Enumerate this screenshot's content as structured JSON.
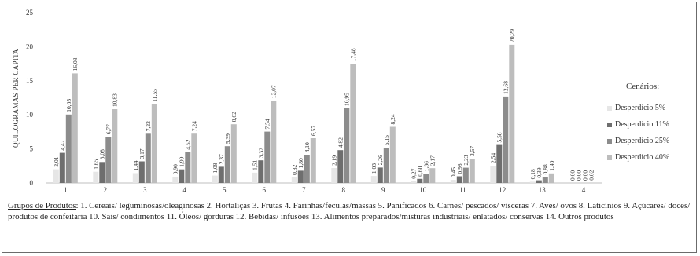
{
  "chart_data": {
    "type": "bar",
    "ylabel": "QUILOGRAMAS PER CAPITA",
    "ylim": [
      0,
      25
    ],
    "yticks": [
      "0",
      "5",
      "10",
      "15",
      "20",
      "25"
    ],
    "categories": [
      "1",
      "2",
      "3",
      "4",
      "5",
      "6",
      "7",
      "8",
      "9",
      "10",
      "11",
      "12",
      "13",
      "14"
    ],
    "grid": false,
    "legend_position": "right",
    "series": [
      {
        "name": "Desperdício 5%",
        "color": "#e6e6e6",
        "values": [
          2.01,
          1.65,
          1.44,
          0.9,
          1.08,
          1.51,
          0.82,
          2.19,
          1.03,
          0.27,
          0.45,
          2.54,
          0.18,
          0.0
        ],
        "labels": [
          "2,01",
          "1,65",
          "1,44",
          "0,90",
          "1,08",
          "1,51",
          "0,82",
          "2,19",
          "1,03",
          "0,27",
          "0,45",
          "2,54",
          "0,18",
          "0,00"
        ]
      },
      {
        "name": "Desperdício 11%",
        "color": "#6e6e6e",
        "values": [
          4.42,
          3.08,
          3.17,
          1.99,
          2.37,
          3.32,
          1.8,
          4.82,
          2.26,
          0.6,
          0.98,
          5.58,
          0.39,
          0.0
        ],
        "labels": [
          "4,42",
          "3,08",
          "3,17",
          "1,99",
          "2,37",
          "3,32",
          "1,80",
          "4,82",
          "2,26",
          "0,60",
          "0,98",
          "5,58",
          "0,39",
          "0,00"
        ]
      },
      {
        "name": "Desperdício 25%",
        "color": "#8c8c8c",
        "values": [
          10.05,
          6.77,
          7.22,
          4.52,
          5.39,
          7.54,
          4.1,
          10.95,
          5.15,
          1.36,
          2.23,
          12.68,
          0.88,
          0.0
        ],
        "labels": [
          "10,05",
          "6,77",
          "7,22",
          "4,52",
          "5,39",
          "7,54",
          "4,10",
          "10,95",
          "5,15",
          "1,36",
          "2,23",
          "12,68",
          "0,88",
          "0,00"
        ]
      },
      {
        "name": "Desperdício 40%",
        "color": "#bdbdbd",
        "values": [
          16.08,
          10.83,
          11.55,
          7.24,
          8.62,
          12.07,
          6.57,
          17.48,
          8.24,
          2.17,
          3.57,
          20.29,
          1.4,
          0.02
        ],
        "labels": [
          "16,08",
          "10,83",
          "11,55",
          "7,24",
          "8,62",
          "12,07",
          "6,57",
          "17,48",
          "8,24",
          "2,17",
          "3,57",
          "20,29",
          "1,40",
          "0,02"
        ]
      }
    ]
  },
  "legend": {
    "title": "Cenários:",
    "items": [
      "Desperdício 5%",
      "Desperdício 11%",
      "Desperdício 25%",
      "Desperdício 40%"
    ]
  },
  "caption": {
    "heading": "Grupos de Produtos",
    "text": ": 1. Cereais/ leguminosas/oleaginosas 2. Hortaliças 3. Frutas 4. Farinhas/féculas/massas 5. Panificados 6. Carnes/ pescados/ vísceras 7. Aves/ ovos 8. Laticínios 9. Açúcares/ doces/ produtos de confeitaria 10. Sais/ condimentos 11. Óleos/ gorduras 12. Bebidas/ infusões 13. Alimentos preparados/misturas industriais/ enlatados/ conservas 14. Outros produtos"
  }
}
